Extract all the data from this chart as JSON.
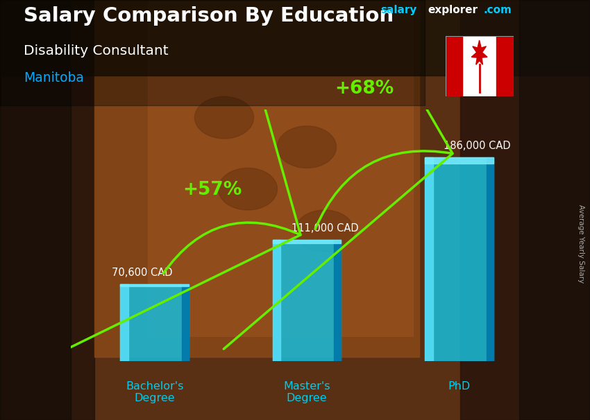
{
  "title_main": "Salary Comparison By Education",
  "title_sub": "Disability Consultant",
  "title_location": "Manitoba",
  "categories": [
    "Bachelor's\nDegree",
    "Master's\nDegree",
    "PhD"
  ],
  "values": [
    70600,
    111000,
    186000
  ],
  "value_labels": [
    "70,600 CAD",
    "111,000 CAD",
    "186,000 CAD"
  ],
  "pct_labels": [
    "+57%",
    "+68%"
  ],
  "bar_color_main": "#1ab8d4",
  "bar_color_light": "#3dd4f0",
  "bar_color_dark": "#0088aa",
  "arrow_color": "#66ee00",
  "text_color_white": "#ffffff",
  "text_color_cyan": "#00ccee",
  "text_color_green": "#66ee00",
  "ylabel_text": "Average Yearly Salary",
  "brand_salary": "salary",
  "brand_explorer": "explorer",
  "brand_com": ".com",
  "bg_left": "#1a1208",
  "bg_center": "#7a4520",
  "bg_right": "#1a1208",
  "figsize": [
    8.5,
    6.06
  ]
}
